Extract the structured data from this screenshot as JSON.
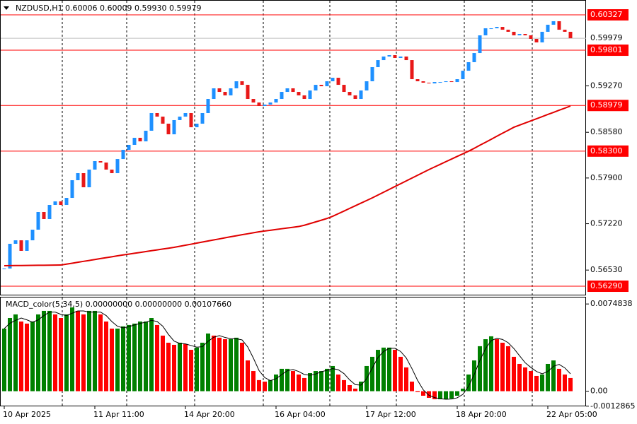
{
  "chart_data": [
    {
      "type": "candlestick",
      "title": "NZDUSD,H1  0.60006 0.60009 0.59930 0.59979",
      "categories": [
        "10 Apr 2025",
        null,
        null,
        null,
        null,
        null,
        null,
        null,
        null,
        null,
        null,
        null,
        null,
        null,
        null,
        null,
        "11 Apr 11:00",
        null,
        null,
        null,
        null,
        null,
        null,
        null,
        null,
        null,
        null,
        null,
        null,
        null,
        null,
        null,
        "14 Apr 20:00",
        null,
        null,
        null,
        null,
        null,
        null,
        null,
        null,
        null,
        null,
        null,
        null,
        null,
        null,
        null,
        "16 Apr 04:00",
        null,
        null,
        null,
        null,
        null,
        null,
        null,
        null,
        null,
        null,
        null,
        null,
        null,
        null,
        null,
        "17 Apr 12:00",
        null,
        null,
        null,
        null,
        null,
        null,
        null,
        null,
        null,
        null,
        null,
        null,
        null,
        null,
        null,
        "18 Apr 20:00",
        null,
        null,
        null,
        null,
        null,
        null,
        null,
        null,
        null,
        null,
        null,
        null,
        null,
        null,
        null,
        "22 Apr 05:00",
        null,
        null,
        null,
        null
      ],
      "values": [
        0.56553,
        0.56921,
        0.56973,
        0.56816,
        0.56973,
        0.57131,
        0.57394,
        0.57289,
        0.57499,
        0.57552,
        0.57499,
        0.57604,
        0.57867,
        0.57972,
        0.57762,
        0.58025,
        0.58151,
        0.5813,
        0.58025,
        0.57972,
        0.58182,
        0.58319,
        0.58393,
        0.58498,
        0.58445,
        0.58603,
        0.58866,
        0.58813,
        0.58708,
        0.5855,
        0.58761,
        0.58813,
        0.58866,
        0.58655,
        0.58708,
        0.58866,
        0.59076,
        0.59234,
        0.59181,
        0.59129,
        0.59234,
        0.59339,
        0.59286,
        0.59076,
        0.59023,
        0.58971,
        0.58992,
        0.59023,
        0.59076,
        0.59181,
        0.59234,
        0.59181,
        0.59129,
        0.59076,
        0.59202,
        0.59286,
        0.59265,
        0.59339,
        0.59391,
        0.59286,
        0.59181,
        0.59129,
        0.59076,
        0.59202,
        0.59339,
        0.59549,
        0.59654,
        0.59707,
        0.59728,
        0.59686,
        0.59707,
        0.59654,
        0.5937,
        0.59339,
        0.59318,
        0.59307,
        0.59328,
        0.59328,
        0.59339,
        0.59328,
        0.5937,
        0.59496,
        0.59623,
        0.59759,
        0.60022,
        0.60127,
        0.60127,
        0.60148,
        0.60106,
        0.60075,
        0.60022,
        0.60043,
        0.60022,
        0.5997,
        0.59917,
        0.60075,
        0.6018,
        0.60232,
        0.60106,
        0.60075,
        0.59979
      ],
      "up_color": "#1e90ff",
      "down_color": "#e81818",
      "ma_values": [
        0.56595,
        0.56596,
        0.56597,
        0.56598,
        0.56599,
        0.566,
        0.56601,
        0.56602,
        0.56603,
        0.56604,
        0.56605,
        0.56619,
        0.56632,
        0.56646,
        0.5666,
        0.56673,
        0.56687,
        0.56701,
        0.56715,
        0.56728,
        0.56742,
        0.56755,
        0.56767,
        0.5678,
        0.56792,
        0.56805,
        0.56818,
        0.5683,
        0.56843,
        0.56855,
        0.56868,
        0.56884,
        0.569,
        0.56915,
        0.56931,
        0.56947,
        0.56963,
        0.56979,
        0.56994,
        0.5701,
        0.57026,
        0.57041,
        0.57056,
        0.5707,
        0.57085,
        0.571,
        0.57111,
        0.57122,
        0.57134,
        0.57145,
        0.57156,
        0.57167,
        0.57178,
        0.57197,
        0.57222,
        0.57247,
        0.57272,
        0.57298,
        0.5733,
        0.57369,
        0.57408,
        0.57448,
        0.57487,
        0.57526,
        0.57565,
        0.57604,
        0.57646,
        0.57688,
        0.5773,
        0.57773,
        0.57815,
        0.57857,
        0.57899,
        0.57941,
        0.57983,
        0.58025,
        0.58064,
        0.58103,
        0.58143,
        0.58182,
        0.58221,
        0.5826,
        0.58299,
        0.58342,
        0.58387,
        0.58431,
        0.58476,
        0.58521,
        0.58566,
        0.5861,
        0.58655,
        0.58687,
        0.58718,
        0.5875,
        0.58781,
        0.58813,
        0.58845,
        0.58876,
        0.58908,
        0.58939,
        0.58971
      ],
      "ma_color": "#e00000",
      "ylim": [
        0.56185,
        0.60548
      ],
      "yticks": [
        {
          "value": 0.5927,
          "label": "0.59270"
        },
        {
          "value": 0.5858,
          "label": "0.58580"
        },
        {
          "value": 0.579,
          "label": "0.57900"
        },
        {
          "value": 0.5722,
          "label": "0.57220"
        },
        {
          "value": 0.5653,
          "label": "0.56530"
        }
      ],
      "levels": [
        {
          "value": 0.60327,
          "label": "0.60327"
        },
        {
          "value": 0.59801,
          "label": "0.59801"
        },
        {
          "value": 0.58979,
          "label": "0.58979"
        },
        {
          "value": 0.583,
          "label": "0.58300"
        },
        {
          "value": 0.5629,
          "label": "0.56290"
        }
      ],
      "level_color": "#ff0000",
      "current_price": {
        "value": 0.59979,
        "label": "0.59979"
      }
    },
    {
      "type": "macd",
      "title": "MACD_color(5,34,5) 0.00000000 0.00000000 0.00107660",
      "values": [
        0.00537,
        0.00628,
        0.00659,
        0.00598,
        0.0058,
        0.00598,
        0.00659,
        0.00689,
        0.00689,
        0.00659,
        0.00628,
        0.00659,
        0.00719,
        0.00689,
        0.00659,
        0.00689,
        0.00689,
        0.00659,
        0.00598,
        0.00537,
        0.00537,
        0.00556,
        0.00568,
        0.0058,
        0.00598,
        0.00598,
        0.00628,
        0.00568,
        0.00477,
        0.00416,
        0.00398,
        0.00416,
        0.00404,
        0.00355,
        0.00374,
        0.00416,
        0.00495,
        0.00477,
        0.00459,
        0.00446,
        0.00446,
        0.00459,
        0.00416,
        0.00264,
        0.00173,
        0.00095,
        0.00082,
        0.00095,
        0.00143,
        0.00192,
        0.00192,
        0.00173,
        0.00143,
        0.00113,
        0.00155,
        0.00173,
        0.00173,
        0.00192,
        0.00216,
        0.00143,
        0.00095,
        0.00052,
        0.00022,
        0.00082,
        0.00216,
        0.00295,
        0.00355,
        0.00374,
        0.00374,
        0.00355,
        0.00295,
        0.00204,
        0.00082,
        -8e-05,
        -0.00039,
        -0.00057,
        -0.00069,
        -0.00069,
        -0.00069,
        -0.00063,
        -0.00039,
        0.00022,
        0.00143,
        0.00264,
        0.00386,
        0.00446,
        0.00471,
        0.00446,
        0.00416,
        0.00386,
        0.00295,
        0.00234,
        0.00204,
        0.00173,
        0.00131,
        0.00143,
        0.00234,
        0.00264,
        0.00192,
        0.00143,
        0.00113
      ],
      "signal_values": [
        0.00537,
        0.00583,
        0.00608,
        0.00628,
        0.00612,
        0.00592,
        0.00612,
        0.00649,
        0.00679,
        0.00679,
        0.00659,
        0.00649,
        0.00669,
        0.00689,
        0.00689,
        0.00679,
        0.00679,
        0.00679,
        0.00649,
        0.00598,
        0.00557,
        0.00543,
        0.00554,
        0.00568,
        0.00582,
        0.00592,
        0.00608,
        0.00598,
        0.00558,
        0.00487,
        0.0043,
        0.0041,
        0.00406,
        0.00392,
        0.00378,
        0.00382,
        0.00428,
        0.00463,
        0.00477,
        0.00461,
        0.0045,
        0.0045,
        0.0044,
        0.0038,
        0.00284,
        0.00177,
        0.00117,
        0.00091,
        0.00107,
        0.00143,
        0.00176,
        0.00186,
        0.00169,
        0.00143,
        0.00137,
        0.00147,
        0.00167,
        0.00179,
        0.00194,
        0.00184,
        0.00151,
        0.00097,
        0.00056,
        0.00052,
        0.00107,
        0.00198,
        0.00289,
        0.00341,
        0.00368,
        0.00368,
        0.00341,
        0.00285,
        0.00194,
        0.00093,
        0.00012,
        -0.00035,
        -0.00055,
        -0.00065,
        -0.00069,
        -0.00067,
        -0.00057,
        -0.00027,
        0.00042,
        0.00143,
        0.00264,
        0.00365,
        0.00434,
        0.00454,
        0.00444,
        0.00416,
        0.00366,
        0.00305,
        0.00244,
        0.00204,
        0.00169,
        0.00149,
        0.00169,
        0.00214,
        0.0023,
        0.002,
        0.00149
      ],
      "up_color": "#008000",
      "down_color": "#ff0000",
      "signal_color": "#000000",
      "ylim": [
        -0.0013,
        0.0081
      ],
      "yticks": [
        {
          "value": 0.0074838,
          "label": "0.0074838"
        },
        {
          "value": 0,
          "label": "0.00"
        },
        {
          "value": -0.0012865,
          "label": "-0.0012865"
        }
      ]
    }
  ]
}
